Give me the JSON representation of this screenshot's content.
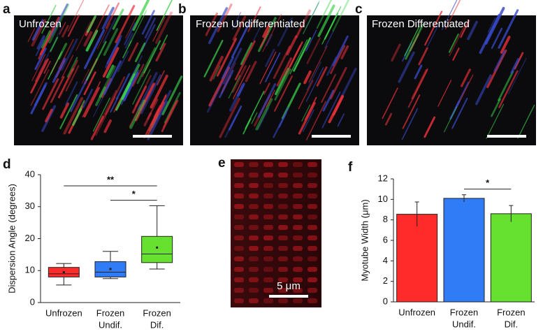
{
  "images": [
    {
      "label": "a",
      "title": "Unfrozen"
    },
    {
      "label": "b",
      "title": "Frozen Undifferentiated"
    },
    {
      "label": "c",
      "title": "Frozen Differentiated"
    },
    {
      "label": "e",
      "scale_label": "5 μm"
    }
  ],
  "chart_data": [
    {
      "type": "box",
      "label": "d",
      "ylabel": "Dispersion Angle (degrees)",
      "categories": [
        [
          "Unfrozen"
        ],
        [
          "Frozen",
          "Undif."
        ],
        [
          "Frozen",
          "Dif."
        ]
      ],
      "boxes": [
        {
          "color": "#ff2a2a",
          "whisker_low": 5.5,
          "q1": 8,
          "median": 9,
          "q3": 11,
          "whisker_high": 12.2,
          "mean": 9.5
        },
        {
          "color": "#2f7cf6",
          "whisker_low": 7.5,
          "q1": 8,
          "median": 9.5,
          "q3": 12.8,
          "whisker_high": 16,
          "mean": 10.5
        },
        {
          "color": "#66e12f",
          "whisker_low": 10.5,
          "q1": 12.5,
          "median": 15.2,
          "q3": 20.7,
          "whisker_high": 30.3,
          "mean": 17.2
        }
      ],
      "ylim": [
        0,
        40
      ],
      "yticks": [
        0,
        10,
        20,
        30,
        40
      ],
      "annotations": [
        {
          "text": "**",
          "from": 0,
          "to": 2,
          "y": 36.5
        },
        {
          "text": "*",
          "from": 1,
          "to": 2,
          "y": 32
        }
      ]
    },
    {
      "type": "bar",
      "label": "f",
      "ylabel": "Myotube Width (μm)",
      "categories": [
        [
          "Unfrozen"
        ],
        [
          "Frozen",
          "Undif."
        ],
        [
          "Frozen",
          "Dif."
        ]
      ],
      "values": [
        8.55,
        10.1,
        8.6
      ],
      "errors": [
        1.2,
        0.35,
        0.8
      ],
      "colors": [
        "#ff2a2a",
        "#2f7cf6",
        "#66e12f"
      ],
      "ylim": [
        0,
        12
      ],
      "yticks": [
        0,
        2,
        4,
        6,
        8,
        10,
        12
      ],
      "annotations": [
        {
          "text": "*",
          "from": 1,
          "to": 2,
          "y": 11
        }
      ]
    }
  ]
}
